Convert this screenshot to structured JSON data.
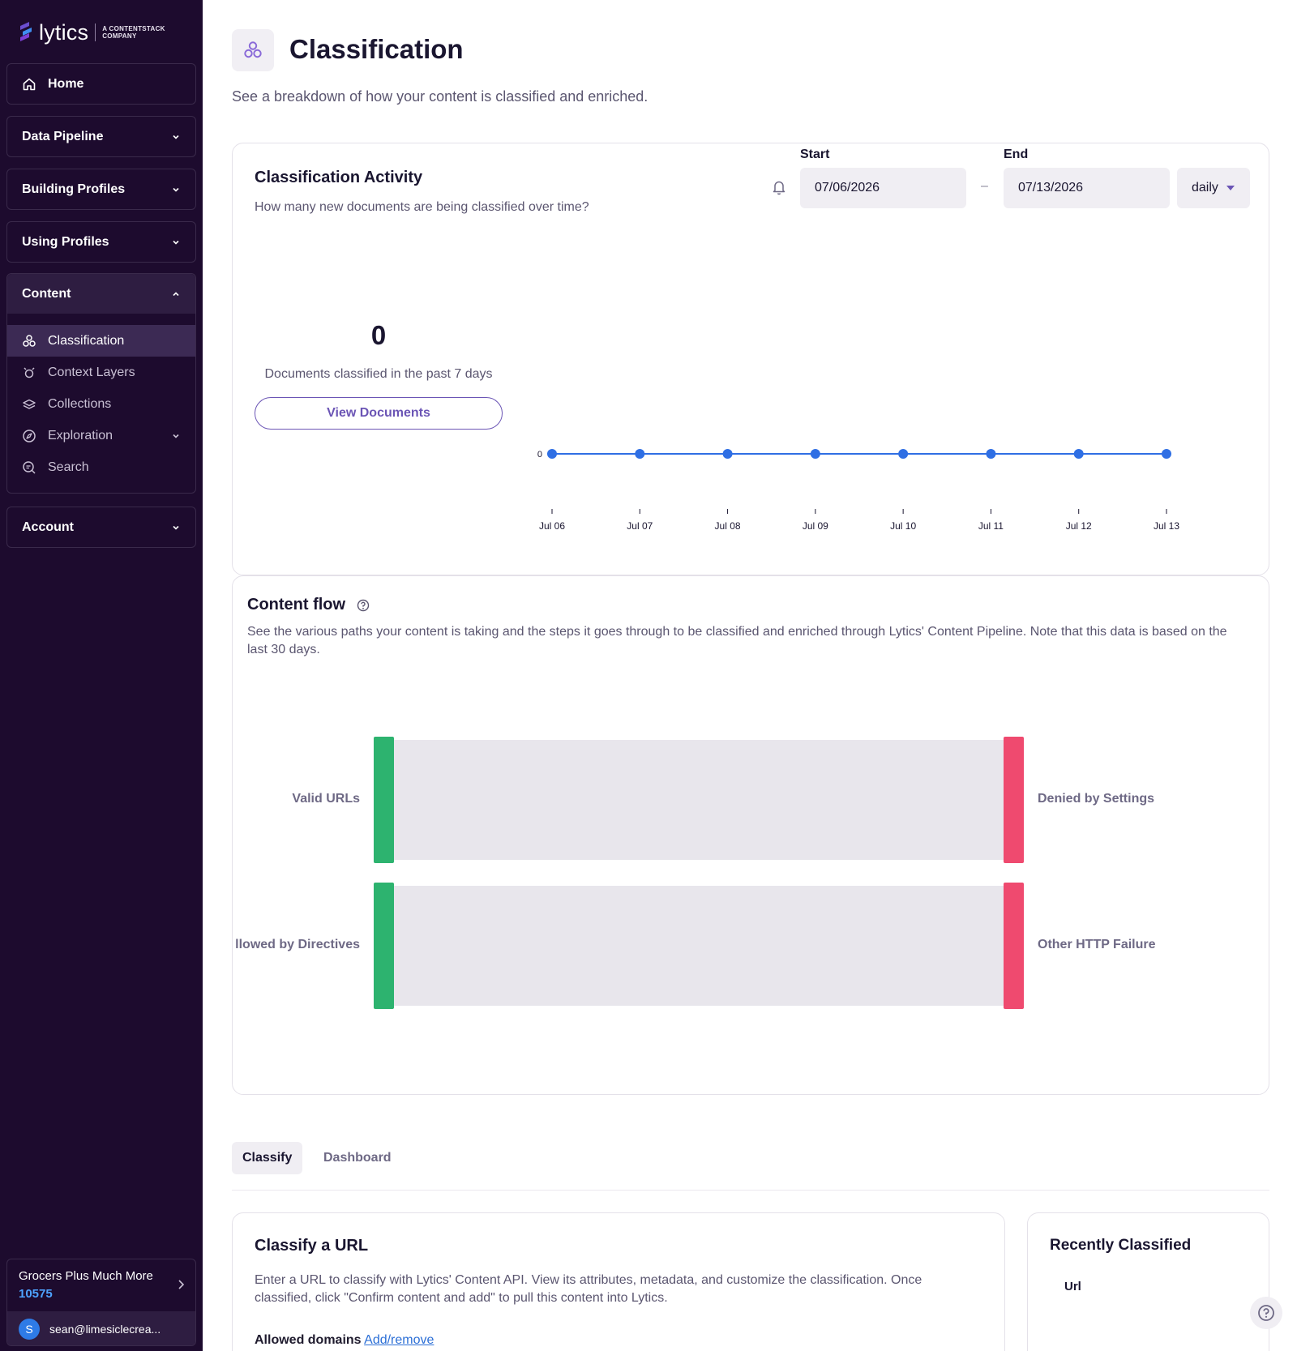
{
  "brand": {
    "name": "lytics",
    "tagline": "A CONTENTSTACK COMPANY"
  },
  "sidebar": {
    "home": "Home",
    "data_pipeline": "Data Pipeline",
    "building_profiles": "Building Profiles",
    "using_profiles": "Using Profiles",
    "content": {
      "label": "Content",
      "items": [
        {
          "label": "Classification",
          "icon": "classification-icon"
        },
        {
          "label": "Context Layers",
          "icon": "context-layers-icon"
        },
        {
          "label": "Collections",
          "icon": "collections-icon"
        },
        {
          "label": "Exploration",
          "icon": "compass-icon"
        },
        {
          "label": "Search",
          "icon": "search-icon"
        }
      ]
    },
    "account": "Account",
    "org": {
      "name": "Grocers Plus Much More",
      "id": "10575",
      "avatar_letter": "S",
      "user_email": "sean@limesiclecrea..."
    }
  },
  "page": {
    "title": "Classification",
    "subtitle": "See a breakdown of how your content is classified and enriched."
  },
  "activity": {
    "title": "Classification Activity",
    "description": "How many new documents are being classified over time?",
    "start_label": "Start",
    "start_value": "07/06/2026",
    "end_label": "End",
    "end_value": "07/13/2026",
    "separator": "–",
    "interval": "daily",
    "count": "0",
    "count_caption": "Documents classified in the past 7 days",
    "view_button": "View Documents"
  },
  "chart_data": {
    "type": "line",
    "x": [
      "Jul 06",
      "Jul 07",
      "Jul 08",
      "Jul 09",
      "Jul 10",
      "Jul 11",
      "Jul 12",
      "Jul 13"
    ],
    "series": [
      {
        "values": [
          0,
          0,
          0,
          0,
          0,
          0,
          0,
          0
        ]
      }
    ],
    "y_ticks": [
      "0"
    ],
    "color": "#2f6fe4"
  },
  "content_flow": {
    "title": "Content flow",
    "description": "See the various paths your content is taking and the steps it goes through to be classified and enriched through Lytics' Content Pipeline. Note that this data is based on the last 30 days.",
    "flows": [
      {
        "source": "Valid URLs",
        "target": "Denied by Settings"
      },
      {
        "source": "llowed by Directives",
        "target": "Other HTTP Failure"
      }
    ],
    "source_color": "#2db36f",
    "target_color": "#ef4a6f"
  },
  "tabs": {
    "classify": "Classify",
    "dashboard": "Dashboard"
  },
  "classify_url": {
    "title": "Classify a URL",
    "description": "Enter a URL to classify with Lytics' Content API. View its attributes, metadata, and customize the classification. Once classified, click \"Confirm content and add\" to pull this content into Lytics.",
    "allowed_label": "Allowed domains",
    "allowed_link": "Add/remove"
  },
  "recent": {
    "title": "Recently Classified",
    "column": "Url"
  }
}
